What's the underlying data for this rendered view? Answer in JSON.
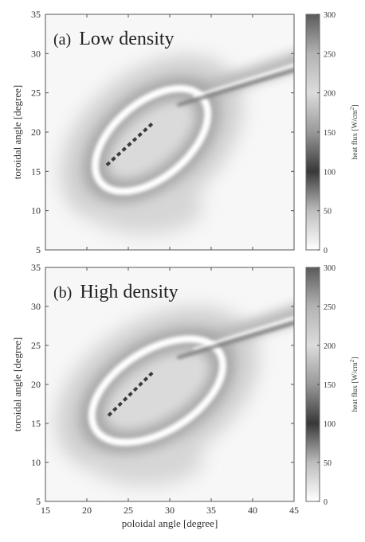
{
  "chart_data": [
    {
      "type": "heatmap",
      "panel_label": "(a)",
      "title": "Low density",
      "xlabel": "",
      "ylabel": "toroidal angle [degree]",
      "xlim": [
        15,
        45
      ],
      "ylim": [
        5,
        35
      ],
      "yticks": [
        "5",
        "10",
        "15",
        "20",
        "25",
        "30",
        "35"
      ],
      "colorbar": {
        "label": "heat flux [W/cm",
        "unit_sup": "2",
        "unit_close": "]",
        "range": [
          0,
          300
        ],
        "ticks": [
          "0",
          "50",
          "100",
          "150",
          "200",
          "250",
          "300"
        ],
        "colors": [
          "#ffffff",
          "#bdbdbd",
          "#383838",
          "#999999",
          "#dcdcdc",
          "#b3b3b3",
          "#5a5a5a"
        ]
      },
      "features": {
        "ring": {
          "cx": 27.8,
          "cy": 19.0,
          "a": 8.0,
          "b": 4.8,
          "angle_deg": 40,
          "value": 40
        },
        "dashed_line": [
          [
            22.4,
            15.8
          ],
          [
            28.0,
            21.2
          ]
        ],
        "tail_ridge": [
          [
            33,
            24.5
          ],
          [
            45,
            28.5
          ]
        ]
      }
    },
    {
      "type": "heatmap",
      "panel_label": "(b)",
      "title": "High density",
      "xlabel": "poloidal angle [degree]",
      "ylabel": "toroidal angle [degree]",
      "xlim": [
        15,
        45
      ],
      "ylim": [
        5,
        35
      ],
      "xticks": [
        "15",
        "20",
        "25",
        "30",
        "35",
        "40",
        "45"
      ],
      "yticks": [
        "5",
        "10",
        "15",
        "20",
        "25",
        "30",
        "35"
      ],
      "colorbar": {
        "label": "heat flux [W/cm",
        "unit_sup": "2",
        "unit_close": "]",
        "range": [
          0,
          300
        ],
        "ticks": [
          "0",
          "50",
          "100",
          "150",
          "200",
          "250",
          "300"
        ],
        "colors": [
          "#ffffff",
          "#bdbdbd",
          "#383838",
          "#999999",
          "#dcdcdc",
          "#b3b3b3",
          "#5a5a5a"
        ]
      },
      "features": {
        "ring": {
          "cx": 28.5,
          "cy": 19.2,
          "a": 8.8,
          "b": 5.2,
          "angle_deg": 32,
          "value": 40
        },
        "dashed_line": [
          [
            22.6,
            16.0
          ],
          [
            28.0,
            21.6
          ]
        ],
        "tail_ridge": [
          [
            33,
            24.5
          ],
          [
            45,
            28.5
          ]
        ]
      }
    }
  ]
}
